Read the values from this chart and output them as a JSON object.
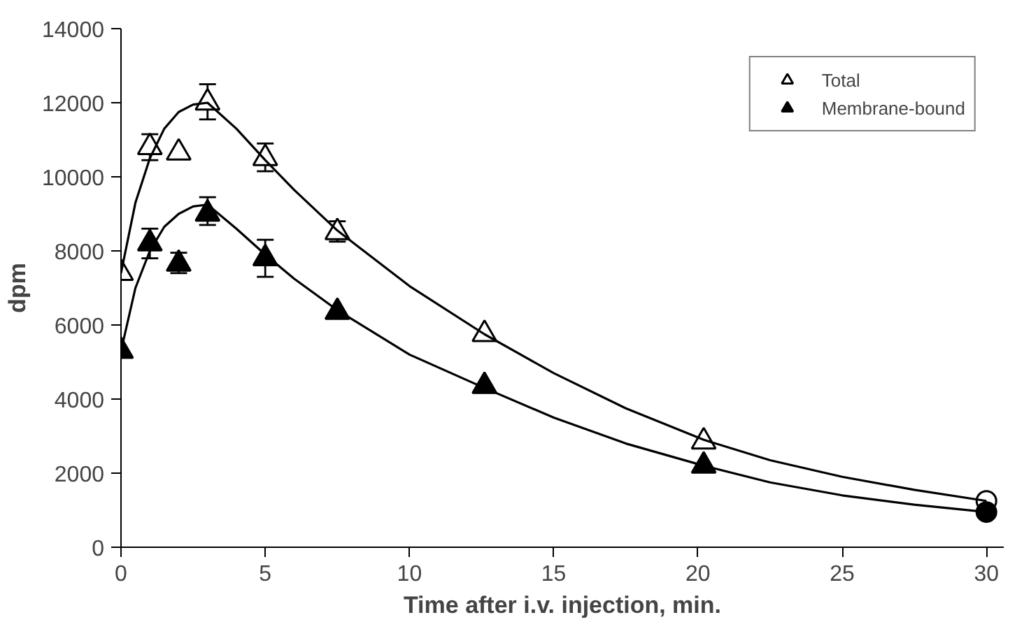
{
  "chart_data": {
    "type": "scatter",
    "xlabel": "Time after i.v. injection, min.",
    "ylabel": "dpm",
    "xlim": [
      0,
      30.6
    ],
    "ylim": [
      0,
      14000
    ],
    "xticks": [
      0,
      5,
      10,
      15,
      20,
      25,
      30
    ],
    "yticks": [
      0,
      2000,
      4000,
      6000,
      8000,
      10000,
      12000,
      14000
    ],
    "grid": false,
    "legend": "top right",
    "series": [
      {
        "name": "Total",
        "marker": "triangle",
        "color": "#ffffff",
        "x": [
          0,
          1,
          2,
          3,
          5,
          7.5,
          12.6,
          20.2
        ],
        "values": [
          7400,
          10800,
          10650,
          12000,
          10500,
          8500,
          5750,
          2850
        ],
        "errors": [
          null,
          [
            10450,
            11150
          ],
          null,
          [
            11550,
            12500
          ],
          [
            10150,
            10900
          ],
          [
            8250,
            8800
          ],
          null,
          null
        ]
      },
      {
        "name": "Membrane-bound",
        "marker": "triangle",
        "color": "#000000",
        "x": [
          0,
          1,
          2,
          3,
          5,
          7.5,
          12.6,
          20.2
        ],
        "values": [
          5300,
          8200,
          7650,
          9000,
          7800,
          6350,
          4350,
          2200
        ],
        "errors": [
          null,
          [
            7800,
            8600
          ],
          [
            7400,
            7950
          ],
          [
            8700,
            9450
          ],
          [
            7300,
            8300
          ],
          null,
          null,
          null
        ]
      },
      {
        "marker": "circle",
        "color": "#ffffff",
        "x": [
          30
        ],
        "values": [
          1250
        ]
      },
      {
        "marker": "circle",
        "color": "#000000",
        "x": [
          30
        ],
        "values": [
          950
        ]
      },
      {
        "type": "line",
        "color": "#000000",
        "x": [
          0,
          0.5,
          1,
          1.5,
          2,
          2.5,
          3,
          4,
          5,
          6,
          7.5,
          10,
          12.6,
          15,
          17.5,
          20.2,
          22.5,
          25,
          27.5,
          30
        ],
        "values": [
          7400,
          9300,
          10500,
          11300,
          11750,
          11950,
          12000,
          11300,
          10450,
          9650,
          8550,
          7050,
          5750,
          4700,
          3750,
          2900,
          2350,
          1900,
          1550,
          1250
        ]
      },
      {
        "type": "line",
        "color": "#000000",
        "x": [
          0,
          0.5,
          1,
          1.5,
          2,
          2.5,
          3,
          4,
          5,
          6,
          7.5,
          10,
          12.6,
          15,
          17.5,
          20.2,
          22.5,
          25,
          27.5,
          30
        ],
        "values": [
          5300,
          7000,
          8000,
          8650,
          9000,
          9200,
          9250,
          8600,
          7900,
          7250,
          6400,
          5200,
          4300,
          3500,
          2800,
          2200,
          1750,
          1400,
          1150,
          950
        ]
      }
    ]
  }
}
